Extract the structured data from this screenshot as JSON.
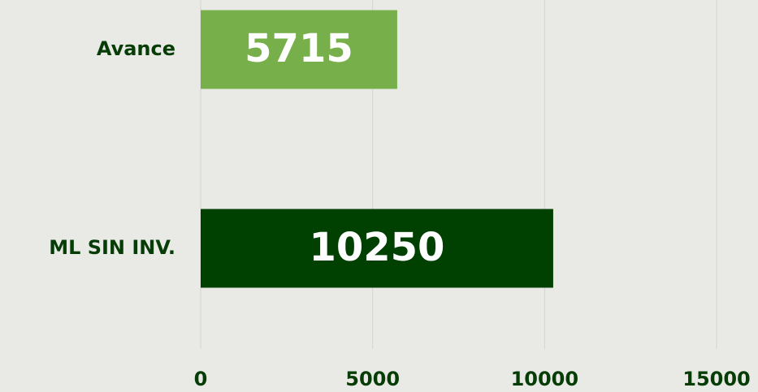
{
  "chart_data": {
    "type": "barh",
    "categories": [
      "Avance",
      "ML SIN INV."
    ],
    "values": [
      5715,
      10250
    ],
    "colors": [
      "#77b04a",
      "#004000"
    ],
    "xlim": [
      0,
      15000
    ],
    "xticks": [
      0,
      5000,
      10000,
      15000
    ],
    "grid": true
  }
}
